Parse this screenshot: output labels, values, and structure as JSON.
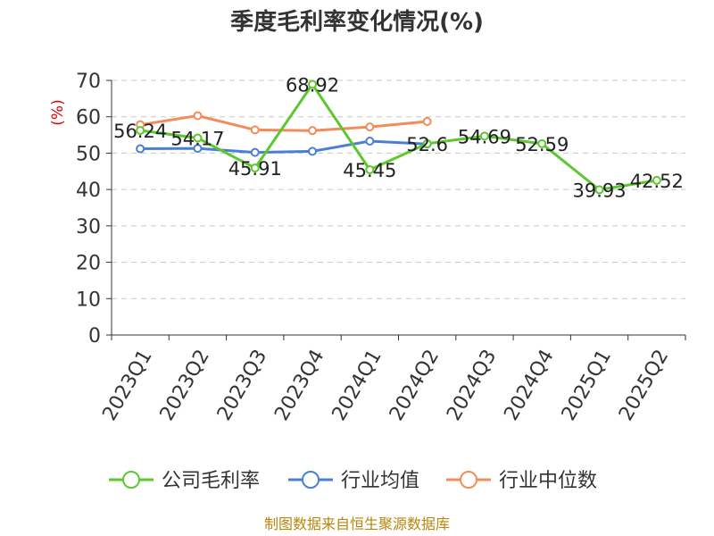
{
  "chart_data": {
    "type": "line",
    "title": "季度毛利率变化情况(%)",
    "ylabel": "(%)",
    "xlabel": "",
    "ylim": [
      0,
      70
    ],
    "yticks": [
      0,
      10,
      20,
      30,
      40,
      50,
      60,
      70
    ],
    "grid": true,
    "legend": "bottom",
    "categories": [
      "2023Q1",
      "2023Q2",
      "2023Q3",
      "2023Q4",
      "2024Q1",
      "2024Q2",
      "2024Q3",
      "2024Q4",
      "2025Q1",
      "2025Q2"
    ],
    "series": [
      {
        "name": "公司毛利率",
        "color": "#5cc82e",
        "values": [
          56.24,
          54.17,
          45.91,
          68.92,
          45.45,
          52.6,
          54.69,
          52.59,
          39.93,
          42.52
        ],
        "labels": [
          "56.24",
          "54.17",
          "45.91",
          "68.92",
          "45.45",
          "52.6",
          "54.69",
          "52.59",
          "39.93",
          "42.52"
        ]
      },
      {
        "name": "行业均值",
        "color": "#4a7fd8",
        "values": [
          51.2,
          51.3,
          50.2,
          50.5,
          53.3,
          52.5,
          null,
          null,
          null,
          null
        ]
      },
      {
        "name": "行业中位数",
        "color": "#f28c5a",
        "values": [
          57.8,
          60.3,
          56.4,
          56.2,
          57.2,
          58.7,
          null,
          null,
          null,
          null
        ]
      }
    ],
    "source": "制图数据来自恒生聚源数据库"
  }
}
